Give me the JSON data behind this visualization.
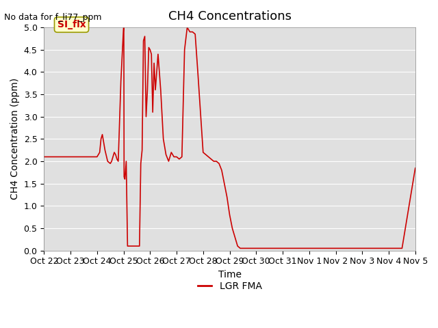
{
  "title": "CH4 Concentrations",
  "ylabel": "CH4 Concentration (ppm)",
  "xlabel": "Time",
  "top_left_note": "No data for f_li77_ppm",
  "legend_label": "LGR FMA",
  "legend_color": "#cc0000",
  "line_color": "#cc0000",
  "ylim": [
    0,
    5.0
  ],
  "yticks": [
    0.0,
    0.5,
    1.0,
    1.5,
    2.0,
    2.5,
    3.0,
    3.5,
    4.0,
    4.5,
    5.0
  ],
  "xtick_labels": [
    "Oct 22",
    "Oct 23",
    "Oct 24",
    "Oct 25",
    "Oct 26",
    "Oct 27",
    "Oct 28",
    "Oct 29",
    "Oct 30",
    "Oct 31",
    "Nov 1",
    "Nov 2",
    "Nov 3",
    "Nov 4",
    "Nov 5"
  ],
  "plot_bg_color": "#e0e0e0",
  "fig_bg_color": "#ffffff",
  "grid_color": "#ffffff",
  "annotation_box_color": "#ffffcc",
  "annotation_box_edge": "#999900",
  "annotation_text": "SI_flx",
  "annotation_text_color": "#cc0000",
  "annotation_fontsize": 10,
  "title_fontsize": 13,
  "label_fontsize": 10,
  "tick_fontsize": 9,
  "x_data": [
    0,
    1,
    2,
    2.1,
    2.15,
    2.2,
    2.3,
    2.4,
    2.5,
    2.55,
    2.6,
    2.65,
    2.7,
    2.75,
    2.8,
    2.9,
    3.0,
    3.01,
    3.02,
    3.05,
    3.1,
    3.15,
    3.2,
    3.25,
    3.3,
    3.35,
    3.4,
    3.5,
    3.6,
    3.65,
    3.7,
    3.75,
    3.8,
    3.85,
    3.9,
    3.95,
    4.0,
    4.05,
    4.1,
    4.15,
    4.2,
    4.3,
    4.4,
    4.5,
    4.6,
    4.7,
    4.8,
    4.9,
    5.0,
    5.1,
    5.2,
    5.3,
    5.4,
    5.5,
    5.6,
    5.7,
    5.8,
    5.9,
    6.0,
    6.1,
    6.2,
    6.3,
    6.4,
    6.5,
    6.6,
    6.7,
    6.8,
    6.9,
    7.0,
    7.1,
    7.2,
    7.3,
    7.4,
    7.5,
    7.6,
    7.7,
    7.8,
    7.9,
    8.0,
    8.5,
    9.0,
    9.5,
    10.0,
    10.5,
    11.0,
    11.5,
    12.0,
    12.5,
    13.0,
    13.5,
    14.0
  ],
  "y_data": [
    2.1,
    2.1,
    2.1,
    2.2,
    2.5,
    2.6,
    2.25,
    2.0,
    1.95,
    2.0,
    2.1,
    2.2,
    2.15,
    2.05,
    2.0,
    3.8,
    5.0,
    5.0,
    1.65,
    1.6,
    2.0,
    0.1,
    0.1,
    0.1,
    0.1,
    0.1,
    0.1,
    0.1,
    0.1,
    1.95,
    2.25,
    4.7,
    4.8,
    3.0,
    3.6,
    4.55,
    4.5,
    4.4,
    3.1,
    4.2,
    3.6,
    4.4,
    3.6,
    2.5,
    2.15,
    2.0,
    2.2,
    2.1,
    2.1,
    2.05,
    2.1,
    4.5,
    5.0,
    4.9,
    4.9,
    4.85,
    4.0,
    3.1,
    2.2,
    2.15,
    2.1,
    2.05,
    2.0,
    2.0,
    1.95,
    1.8,
    1.5,
    1.2,
    0.8,
    0.5,
    0.3,
    0.1,
    0.05,
    0.05,
    0.05,
    0.05,
    0.05,
    0.05,
    0.05,
    0.05,
    0.05,
    0.05,
    0.05,
    0.05,
    0.05,
    0.05,
    0.05,
    0.05,
    0.05,
    0.05,
    1.85
  ],
  "xmin": 0,
  "xmax": 14
}
